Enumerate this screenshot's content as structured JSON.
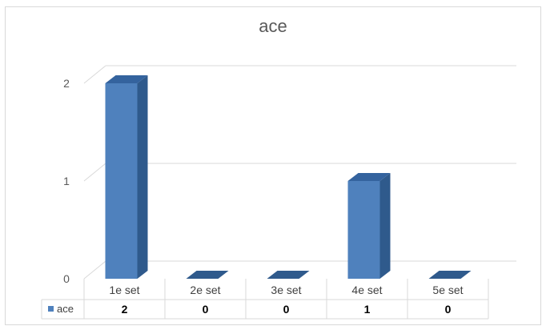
{
  "chart_data": {
    "type": "bar",
    "title": "ace",
    "categories": [
      "1e set",
      "2e set",
      "3e set",
      "4e set",
      "5e set"
    ],
    "series": [
      {
        "name": "ace",
        "values": [
          2,
          0,
          0,
          1,
          0
        ],
        "color": "#4F81BD"
      }
    ],
    "ylim": [
      0,
      2
    ],
    "yticks": [
      "0",
      "1",
      "2"
    ],
    "grid": true,
    "legend": "data-table-left",
    "style": "3d-column-with-data-table"
  }
}
